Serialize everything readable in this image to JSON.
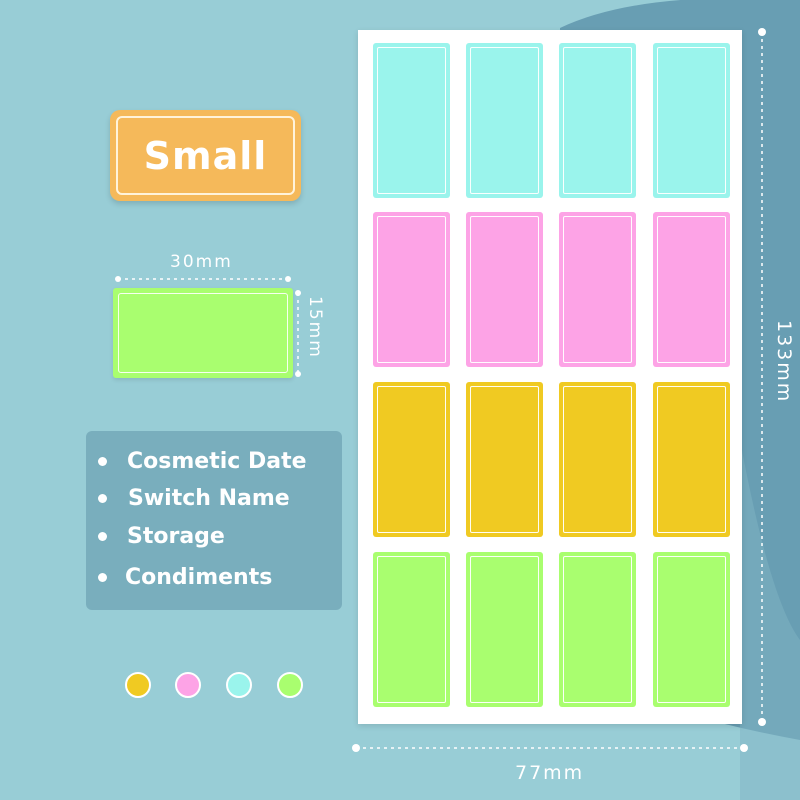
{
  "badge": {
    "size_label": "Small"
  },
  "dimensions": {
    "label_width": "30mm",
    "label_height": "15mm",
    "sheet_height": "133mm",
    "sheet_width": "77mm"
  },
  "uses": [
    "Cosmetic Date",
    "Switch Name",
    "Storage",
    "Condiments"
  ],
  "colors": {
    "background": "#98cdd6",
    "badge": "#f5b95a",
    "cyan": "#9af4ec",
    "pink": "#fda3e6",
    "yellow": "#f0ca22",
    "green": "#a9fe6f"
  },
  "swatches": [
    {
      "name": "yellow",
      "color": "#f0ca22"
    },
    {
      "name": "pink",
      "color": "#fda3e6"
    },
    {
      "name": "cyan",
      "color": "#9af4ec"
    },
    {
      "name": "green",
      "color": "#a9fe6f"
    }
  ],
  "sheet_rows": [
    {
      "color": "#9af4ec",
      "count": 4
    },
    {
      "color": "#fda3e6",
      "count": 4
    },
    {
      "color": "#f0ca22",
      "count": 4
    },
    {
      "color": "#a9fe6f",
      "count": 4
    }
  ]
}
